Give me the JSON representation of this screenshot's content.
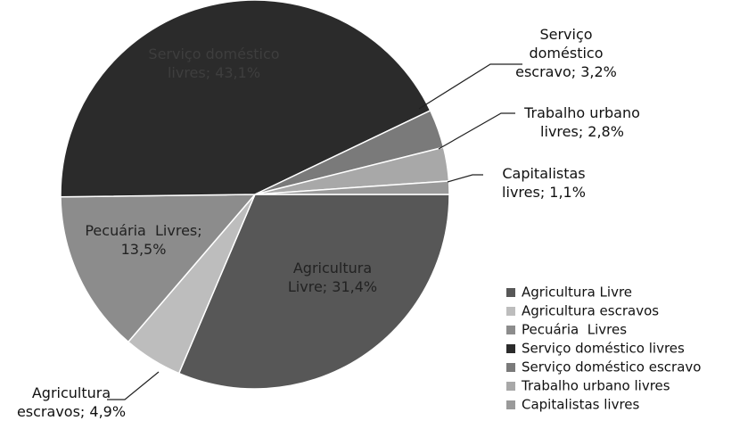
{
  "chart_data": {
    "type": "pie",
    "categories": [
      "Agricultura Livre",
      "Agricultura escravos",
      "Pecuária  Livres",
      "Serviço doméstico livres",
      "Serviço doméstico escravo",
      "Trabalho urbano livres",
      "Capitalistas livres"
    ],
    "values": [
      31.4,
      4.9,
      13.5,
      43.1,
      3.2,
      2.8,
      1.1
    ],
    "value_labels": [
      "Agricultura Livre; 31,4%",
      "Agricultura escravos; 4,9%",
      "Pecuária  Livres; 13,5%",
      "Serviço doméstico livres; 43,1%",
      "Serviço doméstico escravo; 3,2%",
      "Trabalho urbano livres; 2,8%",
      "Capitalistas livres; 1,1%"
    ],
    "colors": [
      "#575757",
      "#bdbdbd",
      "#8c8c8c",
      "#2b2b2b",
      "#7a7a7a",
      "#a8a8a8",
      "#9a9a9a"
    ],
    "legend": "bottom-right"
  }
}
